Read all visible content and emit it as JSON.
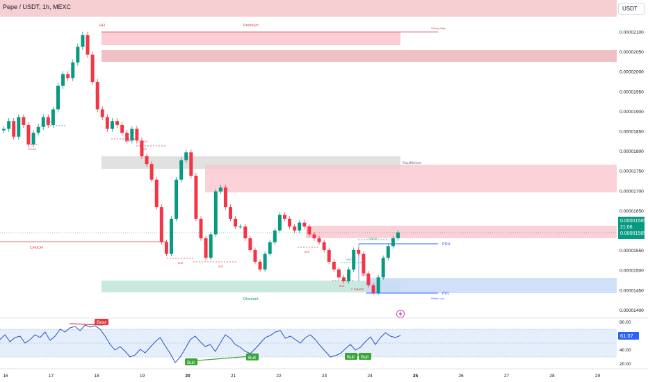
{
  "header": {
    "symbol_title": "Pepe / USDT, 1h, MEXC",
    "currency_button": "USDT"
  },
  "price_tag": {
    "price": "0.00001585",
    "countdown": "21:06",
    "price_repeat": "0.00001585"
  },
  "price_axis": {
    "labels": [
      "0.00002100",
      "0.00002050",
      "0.00002000",
      "0.00001950",
      "0.00001900",
      "0.00001850",
      "0.00001800",
      "0.00001750",
      "0.00001700",
      "0.00001650",
      "0.00001600",
      "0.00001550",
      "0.00001500",
      "0.00001450",
      "0.00001400"
    ]
  },
  "time_axis": {
    "labels": [
      "16",
      "17",
      "18",
      "19",
      "20",
      "21",
      "22",
      "23",
      "24",
      "25",
      "26",
      "27",
      "28",
      "29"
    ]
  },
  "rsi": {
    "axis_labels": [
      "80.00",
      "40.00",
      "20.00"
    ],
    "value": "61.07",
    "badges": [
      {
        "label": "Bear",
        "type": "bear"
      },
      {
        "label": "Bull",
        "type": "bull"
      },
      {
        "label": "Bull",
        "type": "bull"
      },
      {
        "label": "Bull",
        "type": "bull"
      },
      {
        "label": "Bull",
        "type": "bull"
      }
    ]
  },
  "annotations": {
    "hh": "HH",
    "premium": "Premium",
    "strong_high": "Strong High",
    "equilibrium": "Equilibrium",
    "discount": "Discount",
    "weak_low": "Weak Low",
    "choch_main": "CHoCH",
    "pdh": "PDH",
    "pdl": "PDL",
    "small_labels": [
      "CHoCH",
      "CHoCH",
      "BOS",
      "CHoCH",
      "BOS",
      "BOS",
      "BOS",
      "BOS",
      "BOS",
      "CHoCH",
      "CHoCH",
      "CHoCH",
      "BOS"
    ]
  },
  "chart_data": {
    "type": "candlestick",
    "symbol": "Pepe / USDT",
    "interval": "1h",
    "exchange": "MEXC",
    "x_tick_labels": [
      "16",
      "17",
      "18",
      "19",
      "20",
      "21",
      "22",
      "23",
      "24",
      "25",
      "26",
      "27",
      "28",
      "29"
    ],
    "y_range": [
      1.38e-05,
      2.13e-05
    ],
    "last_price": 1.585e-05,
    "close_series": [
      1.85e-05,
      1.87e-05,
      1.83e-05,
      1.88e-05,
      1.86e-05,
      1.81e-05,
      1.84e-05,
      1.855e-05,
      1.88e-05,
      1.86e-05,
      1.9e-05,
      1.96e-05,
      1.99e-05,
      1.98e-05,
      2.02e-05,
      2.06e-05,
      2.09e-05,
      2.04e-05,
      1.97e-05,
      1.9e-05,
      1.88e-05,
      1.85e-05,
      1.87e-05,
      1.86e-05,
      1.84e-05,
      1.82e-05,
      1.85e-05,
      1.82e-05,
      1.78e-05,
      1.76e-05,
      1.72e-05,
      1.65e-05,
      1.56e-05,
      1.53e-05,
      1.62e-05,
      1.72e-05,
      1.77e-05,
      1.79e-05,
      1.73e-05,
      1.62e-05,
      1.57e-05,
      1.52e-05,
      1.58e-05,
      1.69e-05,
      1.7e-05,
      1.65e-05,
      1.62e-05,
      1.6e-05,
      1.6e-05,
      1.57e-05,
      1.54e-05,
      1.51e-05,
      1.49e-05,
      1.53e-05,
      1.56e-05,
      1.59e-05,
      1.63e-05,
      1.62e-05,
      1.6e-05,
      1.59e-05,
      1.61e-05,
      1.6e-05,
      1.58e-05,
      1.57e-05,
      1.56e-05,
      1.54e-05,
      1.51e-05,
      1.49e-05,
      1.47e-05,
      1.46e-05,
      1.49e-05,
      1.54e-05,
      1.53e-05,
      1.48e-05,
      1.45e-05,
      1.43e-05,
      1.47e-05,
      1.52e-05,
      1.55e-05,
      1.57e-05,
      1.585e-05
    ],
    "zones": [
      {
        "label": "Premium",
        "low": 2.065e-05,
        "high": 2.1e-05
      },
      {
        "label": "",
        "low": 2.02e-05,
        "high": 2.05e-05
      },
      {
        "label": "Equilibrium",
        "low": 1.75e-05,
        "high": 1.785e-05
      },
      {
        "label": "",
        "low": 1.685e-05,
        "high": 1.76e-05
      },
      {
        "label": "",
        "low": 1.58e-05,
        "high": 1.612e-05
      },
      {
        "label": "Discount",
        "low": 1.435e-05,
        "high": 1.465e-05
      },
      {
        "label": "PDL",
        "low": 1.43e-05,
        "high": 1.47e-05
      }
    ],
    "levels": [
      {
        "label": "Strong High",
        "value": 2.1e-05
      },
      {
        "label": "CHoCH",
        "value": 1.563e-05
      },
      {
        "label": "PDH",
        "value": 1.56e-05
      },
      {
        "label": "PDL",
        "value": 1.432e-05
      }
    ],
    "rsi": {
      "y_ticks": [
        80,
        40,
        20
      ],
      "last": 61.07,
      "band": [
        30,
        70
      ],
      "series": [
        55,
        62,
        52,
        58,
        60,
        50,
        55,
        62,
        58,
        66,
        54,
        60,
        70,
        66,
        72,
        74,
        68,
        76,
        73,
        75,
        70,
        60,
        48,
        40,
        45,
        38,
        30,
        33,
        41,
        36,
        44,
        52,
        58,
        46,
        35,
        22,
        30,
        42,
        55,
        60,
        52,
        45,
        48,
        38,
        50,
        62,
        57,
        48,
        44,
        38,
        35,
        42,
        50,
        58,
        61,
        66,
        68,
        57,
        60,
        55,
        50,
        58,
        62,
        55,
        46,
        38,
        30,
        32,
        35,
        42,
        48,
        40,
        44,
        52,
        59,
        48,
        58,
        65,
        60,
        58,
        61
      ]
    }
  }
}
